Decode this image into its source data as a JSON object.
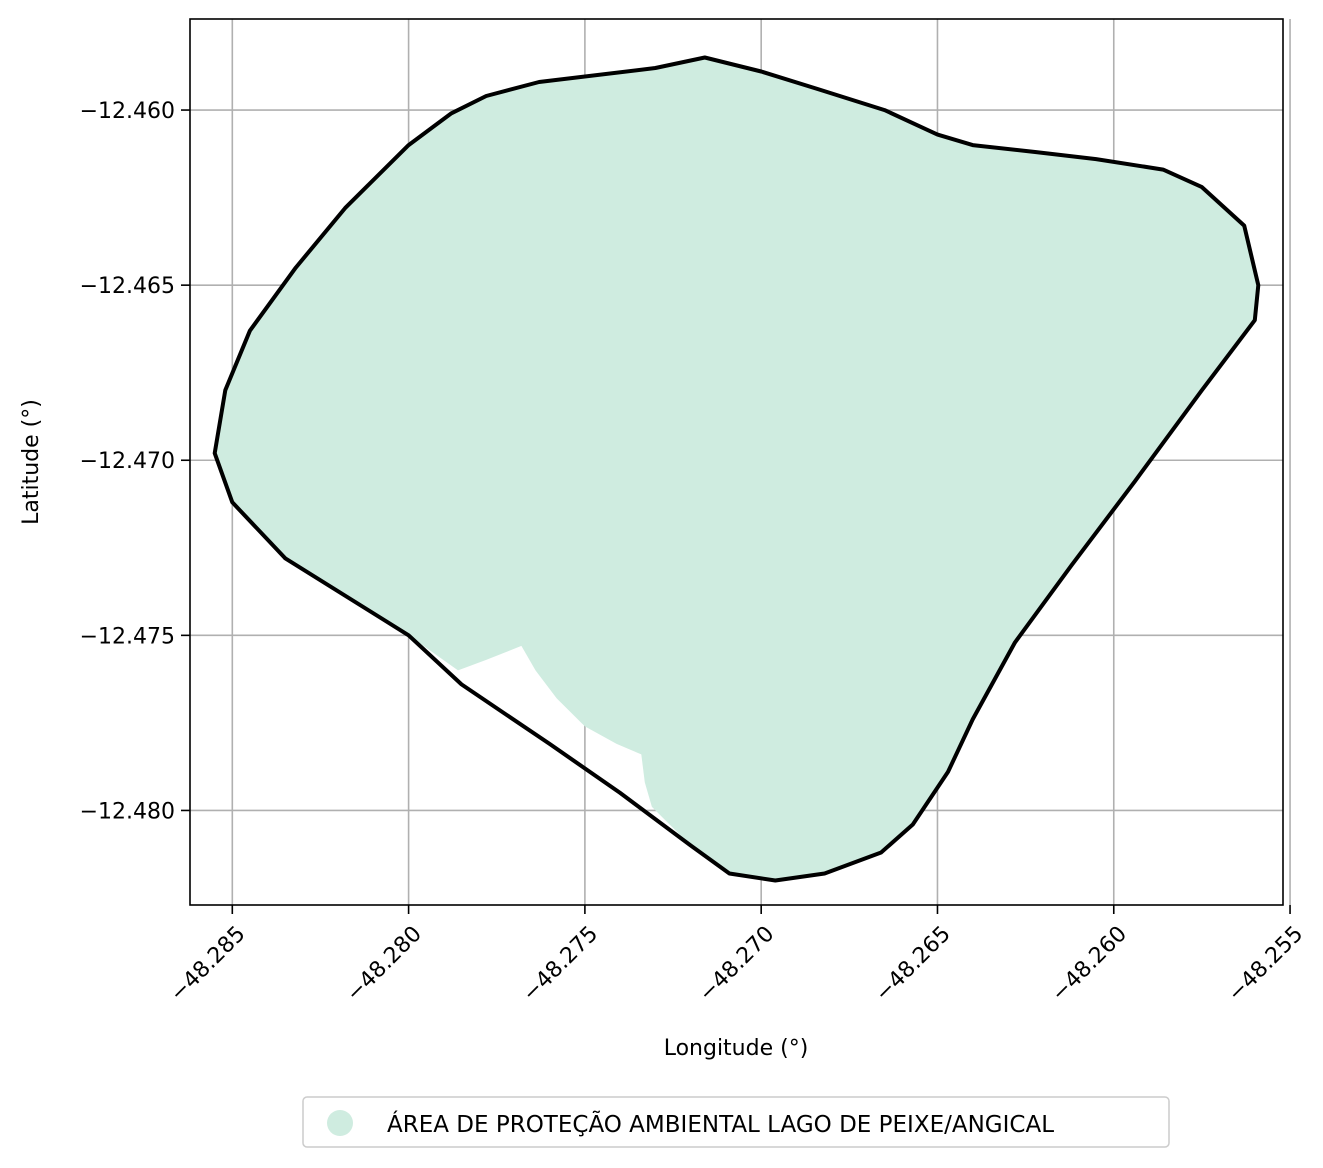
{
  "chart_data": {
    "type": "map",
    "xlabel": "Longitude (°)",
    "ylabel": "Latitude (°)",
    "xlim": [
      -48.2862,
      -48.2552
    ],
    "ylim": [
      -12.4827,
      -12.4574
    ],
    "x_ticks": [
      -48.285,
      -48.28,
      -48.275,
      -48.27,
      -48.265,
      -48.26,
      -48.255
    ],
    "x_tick_labels": [
      "−48.285",
      "−48.280",
      "−48.275",
      "−48.270",
      "−48.265",
      "−48.260",
      "−48.255"
    ],
    "y_ticks": [
      -12.46,
      -12.465,
      -12.47,
      -12.475,
      -12.48
    ],
    "y_tick_labels": [
      "−12.460",
      "−12.465",
      "−12.470",
      "−12.475",
      "−12.480"
    ],
    "grid": true,
    "legend_position": "bottom-center",
    "series": [
      {
        "name": "ÁREA DE PROTEÇÃO AMBIENTAL LAGO DE PEIXE/ANGICAL",
        "fill_color": "#cfece0",
        "edge_color": "#000000",
        "fill_polygon": [
          [
            -48.2835,
            -12.4728
          ],
          [
            -48.285,
            -12.4712
          ],
          [
            -48.2855,
            -12.4698
          ],
          [
            -48.2852,
            -12.468
          ],
          [
            -48.2845,
            -12.4663
          ],
          [
            -48.2832,
            -12.4645
          ],
          [
            -48.2818,
            -12.4628
          ],
          [
            -48.28,
            -12.461
          ],
          [
            -48.2788,
            -12.4601
          ],
          [
            -48.2778,
            -12.4596
          ],
          [
            -48.2763,
            -12.4592
          ],
          [
            -48.273,
            -12.4588
          ],
          [
            -48.2716,
            -12.4585
          ],
          [
            -48.27,
            -12.4589
          ],
          [
            -48.2684,
            -12.4594
          ],
          [
            -48.2665,
            -12.46
          ],
          [
            -48.265,
            -12.4607
          ],
          [
            -48.264,
            -12.461
          ],
          [
            -48.2622,
            -12.4612
          ],
          [
            -48.2605,
            -12.4614
          ],
          [
            -48.2586,
            -12.4617
          ],
          [
            -48.2575,
            -12.4622
          ],
          [
            -48.2563,
            -12.4633
          ],
          [
            -48.2559,
            -12.465
          ],
          [
            -48.256,
            -12.466
          ],
          [
            -48.2575,
            -12.468
          ],
          [
            -48.2594,
            -12.4706
          ],
          [
            -48.2612,
            -12.473
          ],
          [
            -48.2628,
            -12.4752
          ],
          [
            -48.264,
            -12.4774
          ],
          [
            -48.2647,
            -12.4789
          ],
          [
            -48.2657,
            -12.4804
          ],
          [
            -48.2666,
            -12.4812
          ],
          [
            -48.2682,
            -12.4818
          ],
          [
            -48.2696,
            -12.482
          ],
          [
            -48.2709,
            -12.4818
          ],
          [
            -48.272,
            -12.481
          ],
          [
            -48.2731,
            -12.4799
          ],
          [
            -48.2733,
            -12.4792
          ],
          [
            -48.2734,
            -12.4784
          ],
          [
            -48.2741,
            -12.4781
          ],
          [
            -48.275,
            -12.4776
          ],
          [
            -48.2758,
            -12.4768
          ],
          [
            -48.2764,
            -12.476
          ],
          [
            -48.2768,
            -12.4753
          ],
          [
            -48.2778,
            -12.4757
          ],
          [
            -48.2786,
            -12.476
          ],
          [
            -48.28,
            -12.475
          ]
        ],
        "boundary": [
          [
            -48.2835,
            -12.4728
          ],
          [
            -48.285,
            -12.4712
          ],
          [
            -48.2855,
            -12.4698
          ],
          [
            -48.2852,
            -12.468
          ],
          [
            -48.2845,
            -12.4663
          ],
          [
            -48.2832,
            -12.4645
          ],
          [
            -48.2818,
            -12.4628
          ],
          [
            -48.28,
            -12.461
          ],
          [
            -48.2788,
            -12.4601
          ],
          [
            -48.2778,
            -12.4596
          ],
          [
            -48.2763,
            -12.4592
          ],
          [
            -48.273,
            -12.4588
          ],
          [
            -48.2716,
            -12.4585
          ],
          [
            -48.27,
            -12.4589
          ],
          [
            -48.2684,
            -12.4594
          ],
          [
            -48.2665,
            -12.46
          ],
          [
            -48.265,
            -12.4607
          ],
          [
            -48.264,
            -12.461
          ],
          [
            -48.2622,
            -12.4612
          ],
          [
            -48.2605,
            -12.4614
          ],
          [
            -48.2586,
            -12.4617
          ],
          [
            -48.2575,
            -12.4622
          ],
          [
            -48.2563,
            -12.4633
          ],
          [
            -48.2559,
            -12.465
          ],
          [
            -48.256,
            -12.466
          ],
          [
            -48.2575,
            -12.468
          ],
          [
            -48.2594,
            -12.4706
          ],
          [
            -48.2612,
            -12.473
          ],
          [
            -48.2628,
            -12.4752
          ],
          [
            -48.264,
            -12.4774
          ],
          [
            -48.2647,
            -12.4789
          ],
          [
            -48.2657,
            -12.4804
          ],
          [
            -48.2666,
            -12.4812
          ],
          [
            -48.2682,
            -12.4818
          ],
          [
            -48.2696,
            -12.482
          ],
          [
            -48.2709,
            -12.4818
          ],
          [
            -48.272,
            -12.481
          ],
          [
            -48.274,
            -12.4795
          ],
          [
            -48.276,
            -12.4781
          ],
          [
            -48.2785,
            -12.4764
          ],
          [
            -48.28,
            -12.475
          ],
          [
            -48.2835,
            -12.4728
          ]
        ]
      }
    ]
  }
}
